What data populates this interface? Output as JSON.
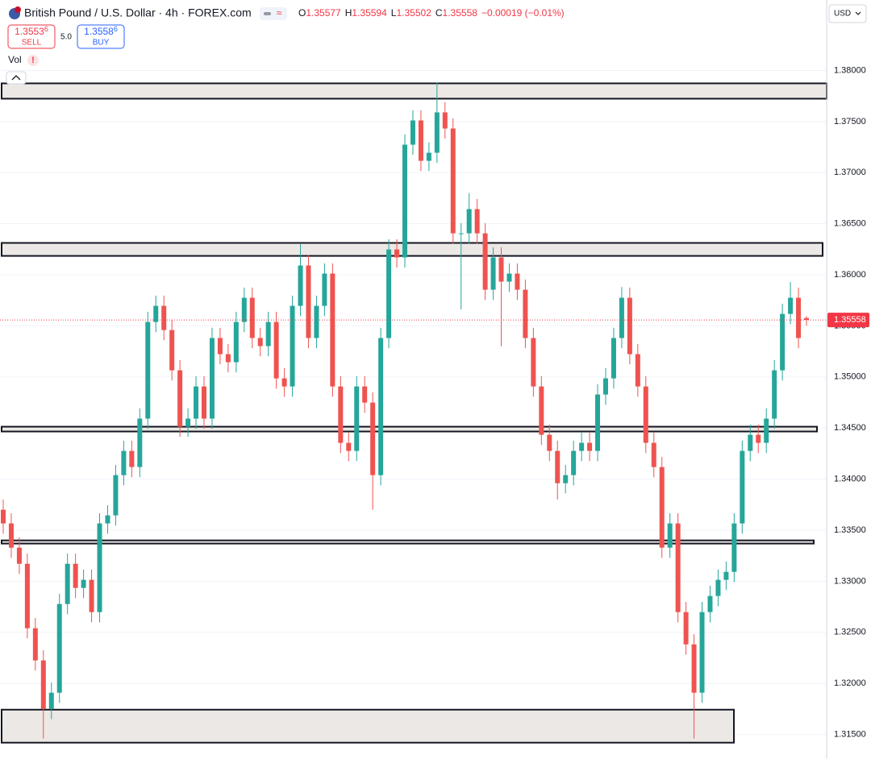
{
  "chart_data": {
    "type": "candlestick",
    "title": "British Pound / U.S. Dollar · 4h · FOREX.com",
    "readout": [
      {
        "label": "O",
        "value": "1.35577"
      },
      {
        "label": "H",
        "value": "1.35594"
      },
      {
        "label": "L",
        "value": "1.35502"
      },
      {
        "label": "C",
        "value": "1.35558"
      }
    ],
    "change": "−0.00019 (−0.01%)",
    "sell": {
      "price": "1.3553",
      "pip": "6",
      "label": "SELL"
    },
    "buy": {
      "price": "1.3558",
      "pip": "6",
      "label": "BUY"
    },
    "spread": "5.0",
    "volume_label": "Vol",
    "currency": "USD",
    "up_color": "#26a69a",
    "down_color": "#ef5350",
    "ylim": [
      1.3126,
      1.3869
    ],
    "yticks": [
      {
        "value": 1.315,
        "label": "1.31500"
      },
      {
        "value": 1.32,
        "label": "1.32000"
      },
      {
        "value": 1.325,
        "label": "1.32500"
      },
      {
        "value": 1.33,
        "label": "1.33000"
      },
      {
        "value": 1.335,
        "label": "1.33500"
      },
      {
        "value": 1.34,
        "label": "1.34000"
      },
      {
        "value": 1.345,
        "label": "1.34500"
      },
      {
        "value": 1.35,
        "label": "1.35000"
      },
      {
        "value": 1.355,
        "label": "1.35500"
      },
      {
        "value": 1.36,
        "label": "1.36000"
      },
      {
        "value": 1.365,
        "label": "1.36500"
      },
      {
        "value": 1.37,
        "label": "1.37000"
      },
      {
        "value": 1.375,
        "label": "1.37500"
      },
      {
        "value": 1.38,
        "label": "1.38000"
      }
    ],
    "grid": true,
    "last_price": {
      "value": 1.35558,
      "label": "1.35558"
    },
    "zones": [
      {
        "top": 1.37874,
        "bottom": 1.37724
      },
      {
        "top": 1.36312,
        "bottom": 1.36185
      },
      {
        "top": 1.34513,
        "bottom": 1.34466
      },
      {
        "top": 1.334,
        "bottom": 1.33369
      },
      {
        "top": 1.31743,
        "bottom": 1.3142
      }
    ],
    "open": [
      1.337,
      1.33566,
      1.33329,
      1.33171,
      1.3254,
      1.32225,
      1.31751,
      1.31909,
      1.32777,
      1.33171,
      1.32935,
      1.33014,
      1.32698,
      1.33566,
      1.33645,
      1.34039,
      1.34276,
      1.34118,
      1.34592,
      1.35538,
      1.35696,
      1.35459,
      1.35065,
      1.34513,
      1.34592,
      1.34907,
      1.34592,
      1.35381,
      1.35223,
      1.35144,
      1.35538,
      1.35775,
      1.35381,
      1.35302,
      1.35538,
      1.34986,
      1.34907,
      1.35696,
      1.36091,
      1.35381,
      1.35696,
      1.36012,
      1.34907,
      1.34355,
      1.34276,
      1.34907,
      1.34749,
      1.34039,
      1.35381,
      1.36248,
      1.3617,
      1.37274,
      1.37511,
      1.37116,
      1.37195,
      1.3759,
      1.37432,
      1.36406,
      1.36406,
      1.36643,
      1.36406,
      1.35854,
      1.3617,
      1.35933,
      1.36012,
      1.35854,
      1.35381,
      1.34907,
      1.34434,
      1.34276,
      1.3396,
      1.34039,
      1.34276,
      1.34355,
      1.34276,
      1.34828,
      1.34986,
      1.35381,
      1.35775,
      1.35223,
      1.34907,
      1.34355,
      1.34118,
      1.33329,
      1.33566,
      1.32698,
      1.32382,
      1.31909,
      1.32698,
      1.32856,
      1.33014,
      1.33092,
      1.33566,
      1.34276,
      1.34434,
      1.34355,
      1.34592,
      1.35065,
      1.35617,
      1.35775,
      1.35577
    ],
    "high": [
      1.338,
      1.33666,
      1.33429,
      1.33271,
      1.3264,
      1.32325,
      1.32009,
      1.32877,
      1.33271,
      1.33271,
      1.33114,
      1.33114,
      1.33666,
      1.33745,
      1.34139,
      1.34376,
      1.34376,
      1.34692,
      1.35638,
      1.35796,
      1.35796,
      1.35559,
      1.35165,
      1.34692,
      1.35007,
      1.35007,
      1.35481,
      1.35481,
      1.35323,
      1.35638,
      1.35875,
      1.35875,
      1.35481,
      1.35638,
      1.35638,
      1.35086,
      1.35796,
      1.363,
      1.36191,
      1.35796,
      1.36112,
      1.36112,
      1.35007,
      1.34455,
      1.35007,
      1.35007,
      1.34849,
      1.35481,
      1.36348,
      1.36348,
      1.37374,
      1.37611,
      1.37611,
      1.37295,
      1.3788,
      1.3769,
      1.37532,
      1.36506,
      1.368,
      1.36743,
      1.36506,
      1.3627,
      1.3627,
      1.36112,
      1.36112,
      1.35954,
      1.35481,
      1.35007,
      1.34534,
      1.34376,
      1.34139,
      1.34376,
      1.34455,
      1.34455,
      1.34928,
      1.35086,
      1.35481,
      1.3588,
      1.35875,
      1.35323,
      1.35007,
      1.34455,
      1.34218,
      1.33666,
      1.33666,
      1.32798,
      1.32482,
      1.32798,
      1.32956,
      1.33114,
      1.33192,
      1.33666,
      1.34376,
      1.34534,
      1.34534,
      1.34692,
      1.35165,
      1.35717,
      1.3593,
      1.35875,
      1.35594
    ],
    "low": [
      1.33466,
      1.33229,
      1.33071,
      1.3244,
      1.32125,
      1.3146,
      1.31651,
      1.31809,
      1.32677,
      1.32835,
      1.32835,
      1.32598,
      1.32598,
      1.33466,
      1.33545,
      1.33939,
      1.34018,
      1.34018,
      1.34492,
      1.35438,
      1.35359,
      1.34965,
      1.34413,
      1.34413,
      1.34492,
      1.34492,
      1.34492,
      1.35123,
      1.35044,
      1.35044,
      1.35438,
      1.35281,
      1.35202,
      1.35202,
      1.34886,
      1.34807,
      1.34807,
      1.35596,
      1.35281,
      1.35281,
      1.35596,
      1.34807,
      1.34255,
      1.34176,
      1.34176,
      1.34649,
      1.337,
      1.33939,
      1.35281,
      1.3607,
      1.3607,
      1.37174,
      1.37016,
      1.37016,
      1.37095,
      1.37332,
      1.36306,
      1.3566,
      1.36306,
      1.36306,
      1.35754,
      1.35754,
      1.353,
      1.35833,
      1.35754,
      1.35281,
      1.34807,
      1.34334,
      1.34176,
      1.338,
      1.3386,
      1.33939,
      1.34176,
      1.34176,
      1.34176,
      1.34728,
      1.34886,
      1.35281,
      1.35123,
      1.34807,
      1.34255,
      1.34018,
      1.33229,
      1.33229,
      1.32598,
      1.32282,
      1.3146,
      1.31809,
      1.32598,
      1.32756,
      1.32914,
      1.32992,
      1.33466,
      1.34176,
      1.34255,
      1.34255,
      1.34492,
      1.34965,
      1.35517,
      1.35281,
      1.35502
    ],
    "close": [
      1.33566,
      1.33329,
      1.33171,
      1.3254,
      1.32225,
      1.31751,
      1.31909,
      1.32777,
      1.33171,
      1.32935,
      1.33014,
      1.32698,
      1.33566,
      1.33645,
      1.34039,
      1.34276,
      1.34118,
      1.34592,
      1.35538,
      1.35696,
      1.35459,
      1.35065,
      1.34513,
      1.34592,
      1.34907,
      1.34592,
      1.35381,
      1.35223,
      1.35144,
      1.35538,
      1.35775,
      1.35381,
      1.35302,
      1.35538,
      1.34986,
      1.34907,
      1.35696,
      1.36091,
      1.35381,
      1.35696,
      1.36012,
      1.34907,
      1.34355,
      1.34276,
      1.34907,
      1.34749,
      1.34039,
      1.35381,
      1.36248,
      1.3617,
      1.37274,
      1.37511,
      1.37116,
      1.37195,
      1.3759,
      1.37432,
      1.36406,
      1.36406,
      1.36643,
      1.36406,
      1.35854,
      1.3617,
      1.35933,
      1.36012,
      1.35854,
      1.35381,
      1.34907,
      1.34434,
      1.34276,
      1.3396,
      1.34039,
      1.34276,
      1.34355,
      1.34276,
      1.34828,
      1.34986,
      1.35381,
      1.35775,
      1.35223,
      1.34907,
      1.34355,
      1.34118,
      1.33329,
      1.33566,
      1.32698,
      1.32382,
      1.31909,
      1.32698,
      1.32856,
      1.33014,
      1.33092,
      1.33566,
      1.34276,
      1.34434,
      1.34355,
      1.34592,
      1.35065,
      1.35617,
      1.35775,
      1.35381,
      1.35558
    ]
  }
}
